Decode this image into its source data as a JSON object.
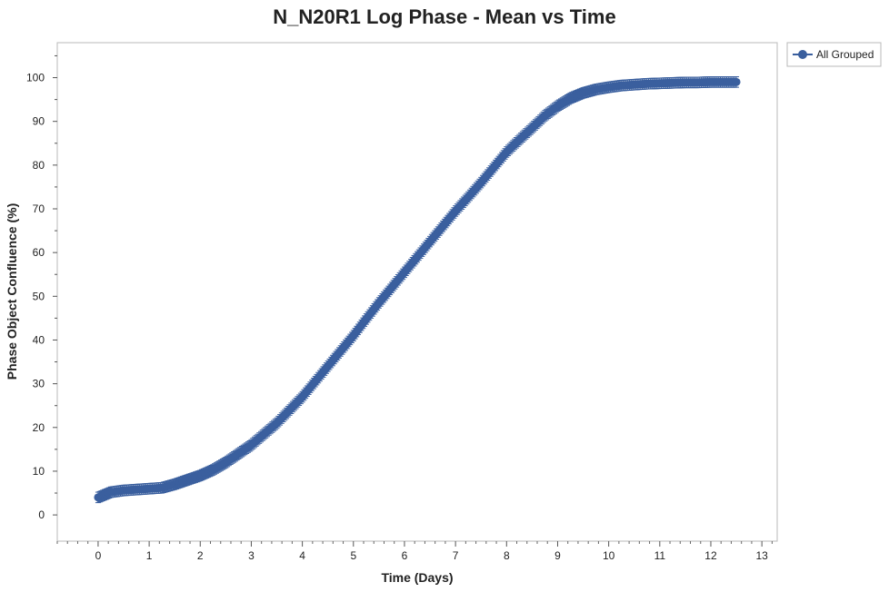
{
  "chart_data": {
    "type": "line",
    "title": "N_N20R1 Log Phase - Mean vs Time",
    "xlabel": "Time (Days)",
    "ylabel": "Phase Object Confluence (%)",
    "xlim": [
      -0.8,
      13.3
    ],
    "ylim": [
      -6,
      108
    ],
    "xticks": [
      0,
      1,
      2,
      3,
      4,
      5,
      6,
      7,
      8,
      9,
      10,
      11,
      12,
      13
    ],
    "yticks": [
      0,
      10,
      20,
      30,
      40,
      50,
      60,
      70,
      80,
      90,
      100
    ],
    "grid": false,
    "legend_position": "top-right",
    "series": [
      {
        "name": "All Grouped",
        "color": "#3a5f9e",
        "marker": "circle",
        "error_bars": true,
        "x": [
          0,
          0.25,
          0.5,
          0.75,
          1.0,
          1.25,
          1.5,
          1.75,
          2.0,
          2.25,
          2.5,
          2.75,
          3.0,
          3.25,
          3.5,
          3.75,
          4.0,
          4.25,
          4.5,
          4.75,
          5.0,
          5.25,
          5.5,
          5.75,
          6.0,
          6.25,
          6.5,
          6.75,
          7.0,
          7.25,
          7.5,
          7.75,
          8.0,
          8.25,
          8.5,
          8.75,
          9.0,
          9.25,
          9.5,
          9.75,
          10.0,
          10.25,
          10.5,
          10.75,
          11.0,
          11.25,
          11.5,
          11.75,
          12.0,
          12.25,
          12.5
        ],
        "y": [
          4.0,
          5.2,
          5.6,
          5.8,
          6.0,
          6.2,
          7.0,
          8.0,
          9.0,
          10.3,
          12.0,
          14.0,
          16.0,
          18.5,
          21.0,
          24.0,
          27.0,
          30.5,
          34.0,
          37.5,
          41.0,
          44.8,
          48.5,
          52.0,
          55.5,
          59.0,
          62.5,
          66.0,
          69.5,
          72.7,
          76.0,
          79.5,
          83.0,
          85.8,
          88.5,
          91.3,
          93.5,
          95.3,
          96.5,
          97.3,
          97.8,
          98.2,
          98.4,
          98.6,
          98.7,
          98.8,
          98.9,
          98.9,
          99.0,
          99.0,
          99.0
        ]
      }
    ]
  }
}
